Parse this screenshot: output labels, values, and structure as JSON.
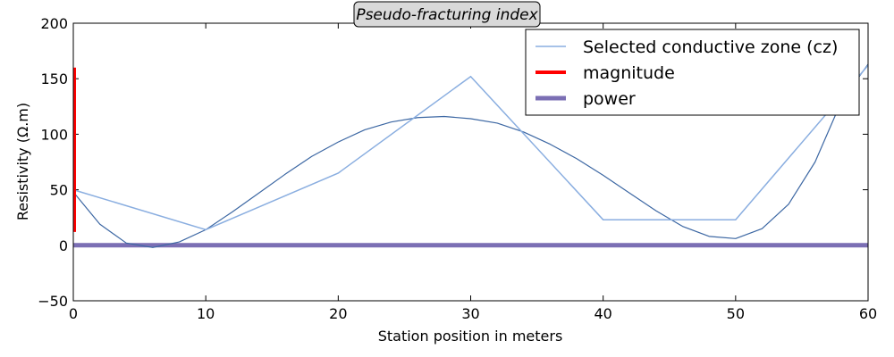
{
  "chart_data": {
    "type": "line",
    "title": "Pseudo-fracturing index",
    "xlabel": "Station position in meters",
    "ylabel": "Resistivity (Ω.m)",
    "xlim": [
      0,
      60
    ],
    "ylim": [
      -50,
      200
    ],
    "xticks": [
      0,
      10,
      20,
      30,
      40,
      50,
      60
    ],
    "yticks": [
      -50,
      0,
      50,
      100,
      150,
      200
    ],
    "legend_position": "top-right",
    "series": [
      {
        "name": "Selected conductive zone (cz)",
        "color": "#8aaee0",
        "x": [
          0,
          10,
          20,
          30,
          40,
          50,
          60
        ],
        "y": [
          50,
          14,
          65,
          152,
          23,
          23,
          162
        ]
      },
      {
        "name": "magnitude",
        "color": "#ff0000",
        "x": [
          0,
          0
        ],
        "y": [
          12,
          160
        ]
      },
      {
        "name": "power",
        "color": "#7b6fb4",
        "x": [
          0,
          60
        ],
        "y": [
          0,
          0
        ]
      }
    ],
    "fit_curve": {
      "color": "#3c67a3",
      "x": [
        0,
        2,
        4,
        6,
        8,
        10,
        12,
        14,
        16,
        18,
        20,
        22,
        24,
        26,
        28,
        30,
        32,
        34,
        36,
        38,
        40,
        42,
        44,
        46,
        48,
        50,
        52,
        54,
        56,
        58,
        60
      ],
      "y": [
        48,
        19,
        2,
        -2,
        3,
        14,
        30,
        47,
        64,
        80,
        93,
        104,
        111,
        115,
        116,
        114,
        110,
        102,
        91,
        78,
        63,
        47,
        31,
        17,
        8,
        6,
        15,
        37,
        75,
        130,
        163
      ]
    }
  }
}
